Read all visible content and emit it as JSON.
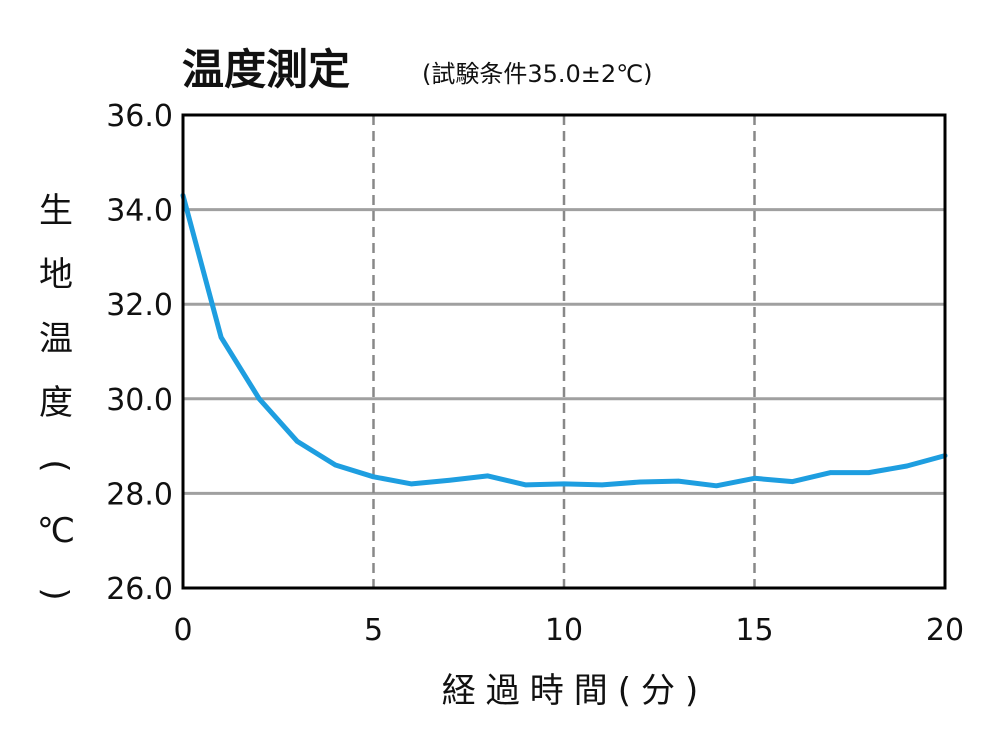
{
  "chart_data": {
    "type": "line",
    "title": "温度測定",
    "subtitle": "(試験条件35.0±2℃)",
    "xlabel": "経過時間(分)",
    "ylabel": "生地温度(℃)",
    "xlim": [
      0,
      20
    ],
    "ylim": [
      26.0,
      36.0
    ],
    "x_ticks": [
      "0",
      "5",
      "10",
      "15",
      "20"
    ],
    "y_ticks": [
      "26.0",
      "28.0",
      "30.0",
      "32.0",
      "34.0",
      "36.0"
    ],
    "grid": {
      "horizontal": "solid",
      "vertical": "dashed"
    },
    "series": [
      {
        "color": "#1e9ee0",
        "x": [
          0,
          1,
          2,
          3,
          4,
          5,
          6,
          7,
          8,
          9,
          10,
          11,
          12,
          13,
          14,
          15,
          16,
          17,
          18,
          19,
          20
        ],
        "values": [
          34.3,
          31.3,
          30.0,
          29.1,
          28.6,
          28.35,
          28.2,
          28.28,
          28.37,
          28.18,
          28.2,
          28.18,
          28.24,
          28.26,
          28.16,
          28.32,
          28.25,
          28.44,
          28.44,
          28.58,
          28.8
        ]
      }
    ]
  }
}
